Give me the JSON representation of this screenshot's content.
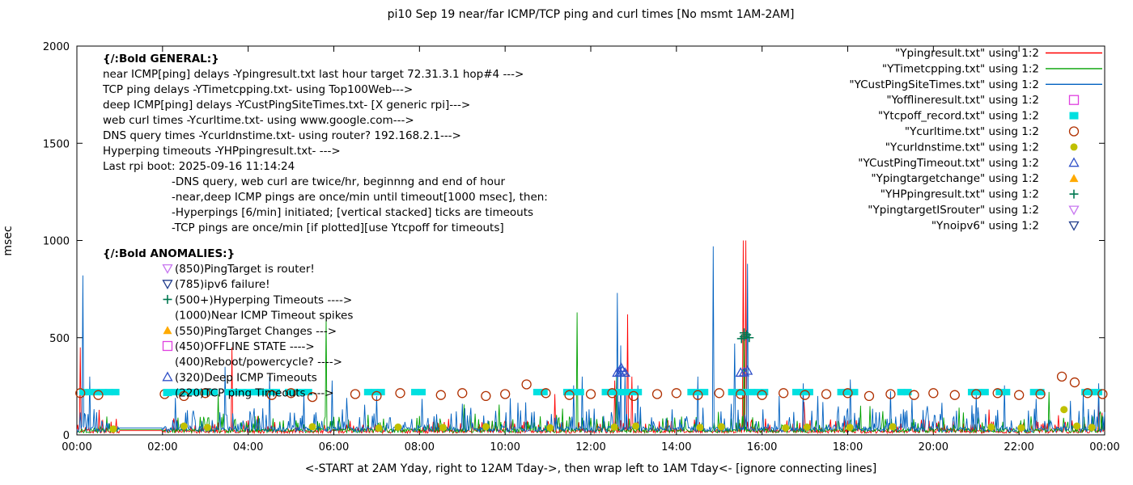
{
  "title": "pi10 Sep 19  near/far ICMP/TCP ping and curl times [No msmt 1AM-2AM]",
  "ylabel": "msec",
  "xlabel": "<-START at 2AM Yday, right to 12AM Tday->, then wrap left to 1AM Tday<- [ignore connecting lines]",
  "axes": {
    "x_tick_labels": [
      "00:00",
      "02:00",
      "04:00",
      "06:00",
      "08:00",
      "10:00",
      "12:00",
      "14:00",
      "16:00",
      "18:00",
      "20:00",
      "22:00",
      "00:00"
    ],
    "y_tick_values": [
      0,
      500,
      1000,
      1500,
      2000
    ],
    "ylim": [
      0,
      2000
    ],
    "xlim_hours": [
      0,
      24
    ]
  },
  "legend": {
    "entries": [
      {
        "label": "\"Ypingresult.txt\" using 1:2",
        "sample": "line",
        "color": "#ff0000"
      },
      {
        "label": "\"YTimetcpping.txt\" using 1:2",
        "sample": "line",
        "color": "#00a000"
      },
      {
        "label": "\"YCustPingSiteTimes.txt\" using 1:2",
        "sample": "line",
        "color": "#0060c0"
      },
      {
        "label": "\"Yofflineresult.txt\" using 1:2",
        "sample": "square-open",
        "color": "#e040e0"
      },
      {
        "label": "\"Ytcpoff_record.txt\" using 1:2",
        "sample": "square-filled",
        "color": "#00e0e0"
      },
      {
        "label": "\"Ycurltime.txt\" using 1:2",
        "sample": "circle-open",
        "color": "#b03000"
      },
      {
        "label": "\"Ycurldnstime.txt\" using 1:2",
        "sample": "circle-filled",
        "color": "#c0c000"
      },
      {
        "label": "\"YCustPingTimeout.txt\" using 1:2",
        "sample": "triangle-open",
        "color": "#3050c8"
      },
      {
        "label": "\"Ypingtargetchange\" using 1:2",
        "sample": "triangle-filled",
        "color": "#ffaa00"
      },
      {
        "label": "\"YHPpingresult.txt\" using 1:2",
        "sample": "plus",
        "color": "#007850"
      },
      {
        "label": "\"YpingtargetISrouter\" using 1:2",
        "sample": "triangle-down-open",
        "color": "#c878f0"
      },
      {
        "label": "\"Ynoipv6\" using 1:2",
        "sample": "triangle-down-open",
        "color": "#203c8c"
      }
    ]
  },
  "annotations": {
    "general": {
      "heading": "{/:Bold GENERAL:}",
      "lines": [
        "near ICMP[ping] delays -Ypingresult.txt last hour target 72.31.3.1 hop#4 --->",
        "TCP ping delays -YTimetcpping.txt- using Top100Web--->",
        "deep ICMP[ping] delays -YCustPingSiteTimes.txt- [X generic rpi]--->",
        "web curl times -Ycurltime.txt- using www.google.com--->",
        "DNS query times -Ycurldnstime.txt- using router? 192.168.2.1--->",
        "Hyperping timeouts -YHPpingresult.txt- --->",
        "Last rpi boot: 2025-09-16 11:14:24"
      ],
      "notes": [
        "-DNS query, web curl are twice/hr, beginnng and end of hour",
        "-near,deep ICMP pings are once/min until timeout[1000 msec], then:",
        "-Hyperpings [6/min] initiated; [vertical stacked] ticks are timeouts",
        "-TCP pings are once/min [if plotted][use Ytcpoff for timeouts]"
      ]
    },
    "anomalies": {
      "heading": "{/:Bold ANOMALIES:}",
      "items": [
        {
          "marker": "triangle-down-open",
          "color": "#c878f0",
          "text": "(850)PingTarget is router!"
        },
        {
          "marker": "triangle-down-open",
          "color": "#203c8c",
          "text": "(785)ipv6 failure!"
        },
        {
          "marker": "plus",
          "color": "#007850",
          "text": "(500+)Hyperping Timeouts ---->"
        },
        {
          "marker": null,
          "color": null,
          "text": "(1000)Near ICMP Timeout spikes"
        },
        {
          "marker": "triangle-filled",
          "color": "#ffaa00",
          "text": "(550)PingTarget Changes --->"
        },
        {
          "marker": "square-open",
          "color": "#e040e0",
          "text": "(450)OFFLINE STATE ---->"
        },
        {
          "marker": null,
          "color": null,
          "text": "(400)Reboot/powercycle? ---->"
        },
        {
          "marker": "triangle-open",
          "color": "#3050c8",
          "text": "(320)Deep ICMP Timeouts"
        },
        {
          "marker": "square-filled",
          "color": "#00e0e0",
          "text": "(220)TCP ping Timeouts ---->"
        }
      ]
    }
  },
  "chart_data": {
    "type": "line+scatter",
    "x_unit": "hours_0_24",
    "ylim": [
      0,
      2000
    ],
    "no_measurement_hours": [
      1,
      2
    ],
    "sample_step_hours": 0.02,
    "line_series": [
      {
        "name": "Ypingresult",
        "color": "#ff0000",
        "seed": 11,
        "base": 22,
        "noise": 60,
        "spike_prob": 0.012,
        "spike_amp": 130,
        "spikes": [
          [
            0.07,
            450
          ],
          [
            3.62,
            450
          ],
          [
            11.15,
            210
          ],
          [
            12.55,
            280
          ],
          [
            12.85,
            620
          ],
          [
            12.95,
            300
          ],
          [
            15.55,
            1000
          ],
          [
            15.62,
            1000
          ],
          [
            16.98,
            170
          ],
          [
            21.3,
            130
          ],
          [
            23.85,
            170
          ]
        ]
      },
      {
        "name": "YTimetcpping",
        "color": "#00a000",
        "seed": 22,
        "base": 28,
        "noise": 80,
        "spike_prob": 0.01,
        "spike_amp": 160,
        "spikes": [
          [
            3.3,
            210
          ],
          [
            5.82,
            600
          ],
          [
            11.67,
            630
          ],
          [
            12.6,
            300
          ],
          [
            15.58,
            530
          ],
          [
            18.3,
            150
          ],
          [
            20.6,
            140
          ],
          [
            23.9,
            120
          ]
        ]
      },
      {
        "name": "YCustPingSiteTimes",
        "color": "#0060c0",
        "seed": 33,
        "base": 36,
        "noise": 110,
        "spike_prob": 0.02,
        "spike_amp": 170,
        "spikes": [
          [
            0.13,
            820
          ],
          [
            0.3,
            300
          ],
          [
            2.3,
            190
          ],
          [
            3.45,
            350
          ],
          [
            4.5,
            300
          ],
          [
            5.3,
            210
          ],
          [
            5.95,
            280
          ],
          [
            6.3,
            190
          ],
          [
            7.0,
            200
          ],
          [
            8.05,
            185
          ],
          [
            9.0,
            160
          ],
          [
            10.3,
            165
          ],
          [
            11.6,
            255
          ],
          [
            11.8,
            300
          ],
          [
            12.62,
            730
          ],
          [
            12.7,
            460
          ],
          [
            12.8,
            310
          ],
          [
            13.1,
            255
          ],
          [
            14.5,
            300
          ],
          [
            14.85,
            970
          ],
          [
            15.35,
            470
          ],
          [
            15.65,
            880
          ],
          [
            16.4,
            200
          ],
          [
            16.95,
            265
          ],
          [
            17.3,
            200
          ],
          [
            18.05,
            285
          ],
          [
            19.0,
            225
          ],
          [
            19.5,
            185
          ],
          [
            20.2,
            165
          ],
          [
            21.0,
            205
          ],
          [
            21.65,
            255
          ],
          [
            22.4,
            185
          ],
          [
            23.2,
            175
          ],
          [
            23.5,
            205
          ],
          [
            23.85,
            265
          ]
        ]
      }
    ],
    "tcpoff_record": {
      "name": "Ytcpoff_record",
      "color": "#00e0e0",
      "y": 220,
      "segments_hours": [
        [
          0.15,
          0.95
        ],
        [
          2.3,
          2.75
        ],
        [
          2.9,
          3.3
        ],
        [
          3.55,
          4.15
        ],
        [
          4.2,
          4.7
        ],
        [
          4.95,
          5.45
        ],
        [
          6.8,
          7.25
        ],
        [
          7.9,
          8.15
        ],
        [
          10.75,
          10.95
        ],
        [
          11.45,
          11.8
        ],
        [
          12.35,
          13.2
        ],
        [
          14.35,
          14.75
        ],
        [
          15.3,
          16.05
        ],
        [
          16.8,
          17.15
        ],
        [
          17.85,
          18.15
        ],
        [
          19.25,
          19.5
        ],
        [
          20.9,
          21.2
        ],
        [
          21.55,
          21.8
        ],
        [
          22.35,
          22.6
        ],
        [
          23.55,
          23.98
        ]
      ]
    },
    "points_series": [
      {
        "name": "Ycurltime",
        "marker": "circle-open",
        "color": "#b03000",
        "points": [
          [
            0.08,
            215
          ],
          [
            0.5,
            205
          ],
          [
            2.05,
            210
          ],
          [
            2.5,
            200
          ],
          [
            3.0,
            215
          ],
          [
            4.55,
            205
          ],
          [
            5.0,
            215
          ],
          [
            5.5,
            195
          ],
          [
            6.5,
            210
          ],
          [
            7.0,
            200
          ],
          [
            7.55,
            215
          ],
          [
            8.5,
            205
          ],
          [
            9.0,
            215
          ],
          [
            9.55,
            200
          ],
          [
            10.0,
            210
          ],
          [
            10.5,
            260
          ],
          [
            10.95,
            215
          ],
          [
            11.5,
            205
          ],
          [
            12.0,
            210
          ],
          [
            12.5,
            215
          ],
          [
            13.0,
            200
          ],
          [
            13.55,
            210
          ],
          [
            14.0,
            215
          ],
          [
            14.5,
            205
          ],
          [
            15.0,
            215
          ],
          [
            15.5,
            210
          ],
          [
            16.0,
            205
          ],
          [
            16.5,
            215
          ],
          [
            17.0,
            205
          ],
          [
            17.5,
            210
          ],
          [
            18.0,
            215
          ],
          [
            18.5,
            200
          ],
          [
            19.0,
            210
          ],
          [
            19.55,
            205
          ],
          [
            20.0,
            215
          ],
          [
            20.5,
            205
          ],
          [
            21.0,
            210
          ],
          [
            21.5,
            215
          ],
          [
            22.0,
            205
          ],
          [
            22.5,
            210
          ],
          [
            23.0,
            300
          ],
          [
            23.3,
            270
          ],
          [
            23.6,
            215
          ],
          [
            23.95,
            210
          ]
        ]
      },
      {
        "name": "Ycurldnstime",
        "marker": "circle-filled",
        "color": "#c0c000",
        "points": [
          [
            0.85,
            30
          ],
          [
            2.5,
            45
          ],
          [
            3.05,
            38
          ],
          [
            5.5,
            42
          ],
          [
            7.05,
            35
          ],
          [
            7.5,
            40
          ],
          [
            8.55,
            38
          ],
          [
            9.55,
            42
          ],
          [
            11.05,
            36
          ],
          [
            12.55,
            40
          ],
          [
            13.05,
            45
          ],
          [
            14.55,
            38
          ],
          [
            15.05,
            42
          ],
          [
            16.55,
            36
          ],
          [
            17.05,
            40
          ],
          [
            18.05,
            38
          ],
          [
            19.05,
            42
          ],
          [
            21.35,
            40
          ],
          [
            22.05,
            36
          ],
          [
            23.05,
            130
          ],
          [
            23.35,
            45
          ],
          [
            23.7,
            38
          ]
        ]
      },
      {
        "name": "YCustPingTimeout",
        "marker": "triangle-open",
        "color": "#3050c8",
        "points": [
          [
            12.62,
            320
          ],
          [
            12.68,
            322
          ],
          [
            12.74,
            330
          ],
          [
            12.8,
            320
          ],
          [
            12.71,
            345
          ],
          [
            15.5,
            320
          ],
          [
            15.58,
            322
          ],
          [
            15.66,
            330
          ]
        ]
      },
      {
        "name": "YHPpingresult",
        "marker": "plus",
        "color": "#007850",
        "points": [
          [
            15.52,
            495
          ],
          [
            15.58,
            505
          ],
          [
            15.64,
            515
          ],
          [
            15.58,
            525
          ],
          [
            15.7,
            500
          ]
        ]
      }
    ]
  }
}
